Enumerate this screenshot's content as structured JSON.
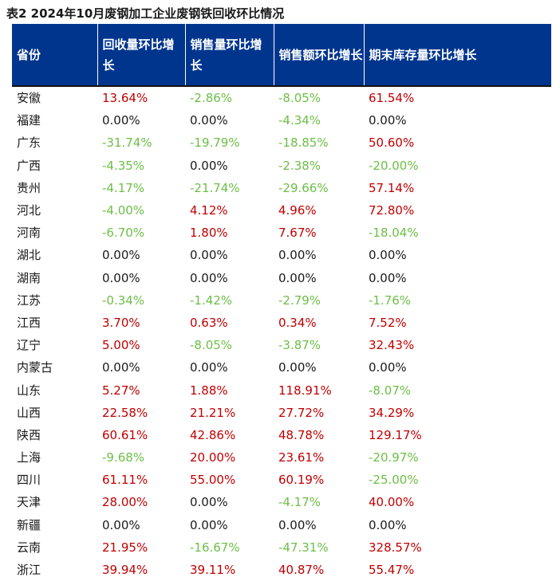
{
  "title": "表2  2024年10月废钢加工企业废钢铁回收环比情况",
  "headers": [
    "省份",
    "回收量环比增长",
    "销售量环比增长",
    "销售额环比增长",
    "期末库存量环比增长"
  ],
  "colors": {
    "header_bg": "#00358e",
    "increase": "#c00000",
    "decrease": "#6cbf46",
    "neutral": "#1a1a1a"
  },
  "rows": [
    {
      "province": "安徽",
      "values": [
        "13.64%",
        "-2.86%",
        "-8.05%",
        "61.54%"
      ]
    },
    {
      "province": "福建",
      "values": [
        "0.00%",
        "0.00%",
        "-4.34%",
        "0.00%"
      ]
    },
    {
      "province": "广东",
      "values": [
        "-31.74%",
        "-19.79%",
        "-18.85%",
        "50.60%"
      ]
    },
    {
      "province": "广西",
      "values": [
        "-4.35%",
        "0.00%",
        "-2.38%",
        "-20.00%"
      ]
    },
    {
      "province": "贵州",
      "values": [
        "-4.17%",
        "-21.74%",
        "-29.66%",
        "57.14%"
      ]
    },
    {
      "province": "河北",
      "values": [
        "-4.00%",
        "4.12%",
        "4.96%",
        "72.80%"
      ]
    },
    {
      "province": "河南",
      "values": [
        "-6.70%",
        "1.80%",
        "7.67%",
        "-18.04%"
      ]
    },
    {
      "province": "湖北",
      "values": [
        "0.00%",
        "0.00%",
        "0.00%",
        "0.00%"
      ]
    },
    {
      "province": "湖南",
      "values": [
        "0.00%",
        "0.00%",
        "0.00%",
        "0.00%"
      ]
    },
    {
      "province": "江苏",
      "values": [
        "-0.34%",
        "-1.42%",
        "-2.79%",
        "-1.76%"
      ]
    },
    {
      "province": "江西",
      "values": [
        "3.70%",
        "0.63%",
        "0.34%",
        "7.52%"
      ]
    },
    {
      "province": "辽宁",
      "values": [
        "5.00%",
        "-8.05%",
        "-3.87%",
        "32.43%"
      ]
    },
    {
      "province": "内蒙古",
      "values": [
        "0.00%",
        "0.00%",
        "0.00%",
        "0.00%"
      ]
    },
    {
      "province": "山东",
      "values": [
        "5.27%",
        "1.88%",
        "118.91%",
        "-8.07%"
      ]
    },
    {
      "province": "山西",
      "values": [
        "22.58%",
        "21.21%",
        "27.72%",
        "34.29%"
      ]
    },
    {
      "province": "陕西",
      "values": [
        "60.61%",
        "42.86%",
        "48.78%",
        "129.17%"
      ]
    },
    {
      "province": "上海",
      "values": [
        "-9.68%",
        "20.00%",
        "23.61%",
        "-20.97%"
      ]
    },
    {
      "province": "四川",
      "values": [
        "61.11%",
        "55.00%",
        "60.19%",
        "-25.00%"
      ]
    },
    {
      "province": "天津",
      "values": [
        "28.00%",
        "0.00%",
        "-4.17%",
        "40.00%"
      ]
    },
    {
      "province": "新疆",
      "values": [
        "0.00%",
        "0.00%",
        "0.00%",
        "0.00%"
      ]
    },
    {
      "province": "云南",
      "values": [
        "21.95%",
        "-16.67%",
        "-47.31%",
        "328.57%"
      ]
    },
    {
      "province": "浙江",
      "values": [
        "39.94%",
        "39.11%",
        "40.87%",
        "55.47%"
      ]
    }
  ]
}
